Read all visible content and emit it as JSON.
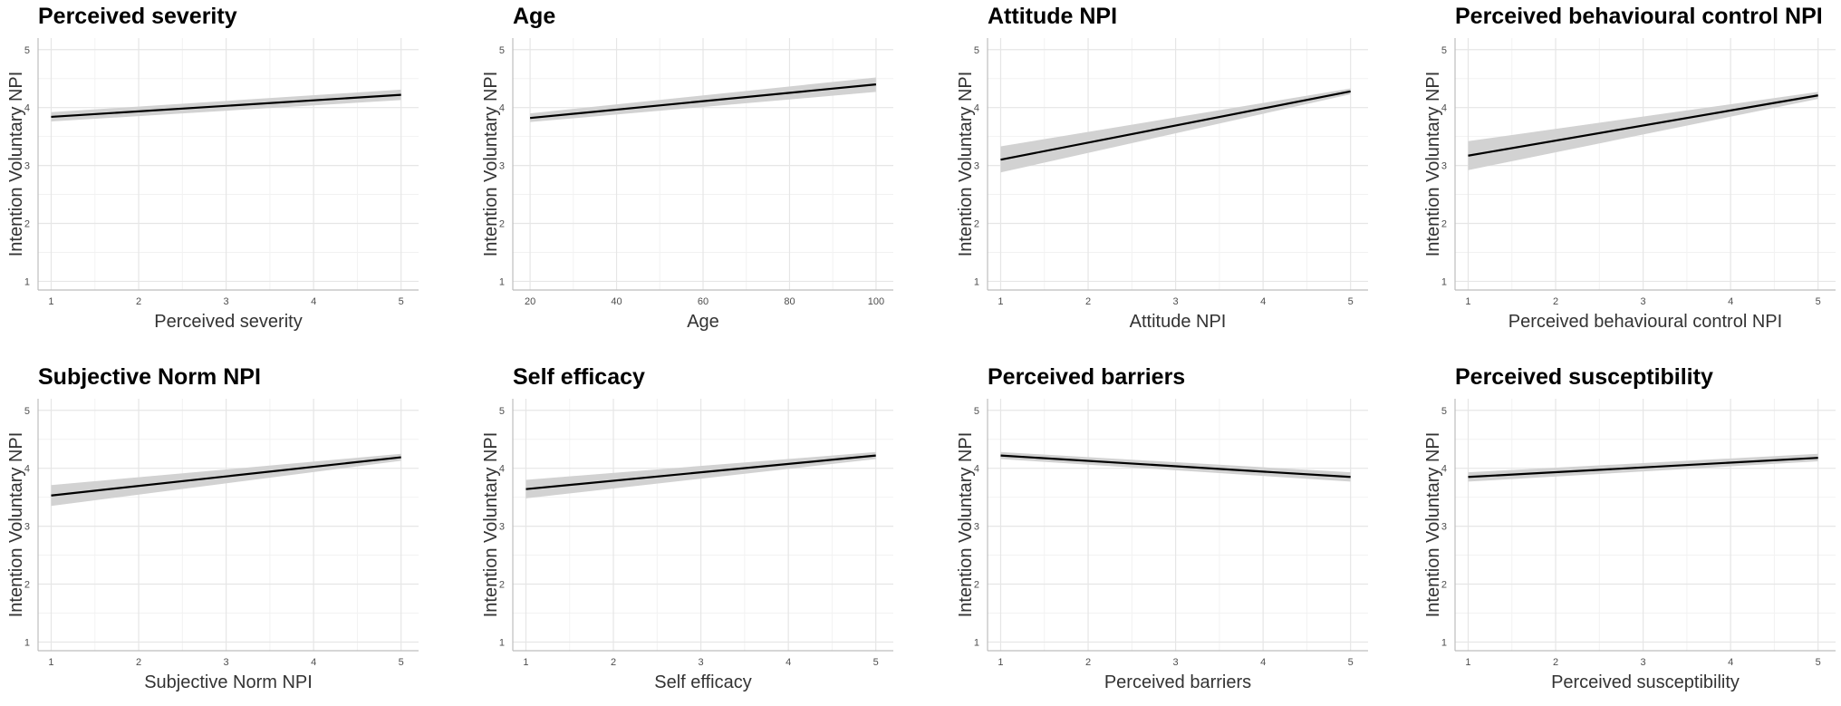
{
  "colors": {
    "background": "#ffffff",
    "grid_major": "#e6e6e6",
    "grid_minor": "#f2f2f2",
    "axis_line": "#bdbdbd",
    "tick_text": "#4d4d4d",
    "axis_title": "#333333",
    "title": "#000000",
    "line": "#000000",
    "ribbon": "#d2d2d2"
  },
  "chart_data": [
    {
      "type": "line",
      "title": "Perceived severity",
      "xlabel": "Perceived severity",
      "ylabel": "Intention Voluntary NPI",
      "xlim": [
        0.85,
        5.2
      ],
      "ylim": [
        0.85,
        5.2
      ],
      "xticks": [
        1,
        2,
        3,
        4,
        5
      ],
      "yticks": [
        1,
        2,
        3,
        4,
        5
      ],
      "xminor": [
        1.5,
        2.5,
        3.5,
        4.5
      ],
      "yminor": [
        1.5,
        2.5,
        3.5,
        4.5
      ],
      "x": [
        1,
        5
      ],
      "y": [
        3.84,
        4.22
      ],
      "lower": [
        3.76,
        4.13
      ],
      "upper": [
        3.92,
        4.31
      ],
      "grid": true
    },
    {
      "type": "line",
      "title": "Age",
      "xlabel": "Age",
      "ylabel": "Intention Voluntary NPI",
      "xlim": [
        16,
        104
      ],
      "ylim": [
        0.85,
        5.2
      ],
      "xticks": [
        20,
        40,
        60,
        80,
        100
      ],
      "yticks": [
        1,
        2,
        3,
        4,
        5
      ],
      "xminor": [
        30,
        50,
        70,
        90
      ],
      "yminor": [
        1.5,
        2.5,
        3.5,
        4.5
      ],
      "x": [
        20,
        100
      ],
      "y": [
        3.82,
        4.4
      ],
      "lower": [
        3.75,
        4.27
      ],
      "upper": [
        3.9,
        4.52
      ],
      "grid": true
    },
    {
      "type": "line",
      "title": "Attitude NPI",
      "xlabel": "Attitude NPI",
      "ylabel": "Intention Voluntary NPI",
      "xlim": [
        0.85,
        5.2
      ],
      "ylim": [
        0.85,
        5.2
      ],
      "xticks": [
        1,
        2,
        3,
        4,
        5
      ],
      "yticks": [
        1,
        2,
        3,
        4,
        5
      ],
      "xminor": [
        1.5,
        2.5,
        3.5,
        4.5
      ],
      "yminor": [
        1.5,
        2.5,
        3.5,
        4.5
      ],
      "x": [
        1,
        5
      ],
      "y": [
        3.1,
        4.28
      ],
      "lower": [
        2.88,
        4.23
      ],
      "upper": [
        3.33,
        4.33
      ],
      "grid": true
    },
    {
      "type": "line",
      "title": "Perceived behavioural control NPI",
      "xlabel": "Perceived behavioural control NPI",
      "ylabel": "Intention Voluntary NPI",
      "xlim": [
        0.85,
        5.2
      ],
      "ylim": [
        0.85,
        5.2
      ],
      "xticks": [
        1,
        2,
        3,
        4,
        5
      ],
      "yticks": [
        1,
        2,
        3,
        4,
        5
      ],
      "xminor": [
        1.5,
        2.5,
        3.5,
        4.5
      ],
      "yminor": [
        1.5,
        2.5,
        3.5,
        4.5
      ],
      "x": [
        1,
        5
      ],
      "y": [
        3.17,
        4.21
      ],
      "lower": [
        2.92,
        4.15
      ],
      "upper": [
        3.42,
        4.27
      ],
      "grid": true
    },
    {
      "type": "line",
      "title": "Subjective Norm NPI",
      "xlabel": "Subjective Norm NPI",
      "ylabel": "Intention Voluntary NPI",
      "xlim": [
        0.85,
        5.2
      ],
      "ylim": [
        0.85,
        5.2
      ],
      "xticks": [
        1,
        2,
        3,
        4,
        5
      ],
      "yticks": [
        1,
        2,
        3,
        4,
        5
      ],
      "xminor": [
        1.5,
        2.5,
        3.5,
        4.5
      ],
      "yminor": [
        1.5,
        2.5,
        3.5,
        4.5
      ],
      "x": [
        1,
        5
      ],
      "y": [
        3.53,
        4.19
      ],
      "lower": [
        3.35,
        4.13
      ],
      "upper": [
        3.71,
        4.25
      ],
      "grid": true
    },
    {
      "type": "line",
      "title": "Self efficacy",
      "xlabel": "Self efficacy",
      "ylabel": "Intention Voluntary NPI",
      "xlim": [
        0.85,
        5.2
      ],
      "ylim": [
        0.85,
        5.2
      ],
      "xticks": [
        1,
        2,
        3,
        4,
        5
      ],
      "yticks": [
        1,
        2,
        3,
        4,
        5
      ],
      "xminor": [
        1.5,
        2.5,
        3.5,
        4.5
      ],
      "yminor": [
        1.5,
        2.5,
        3.5,
        4.5
      ],
      "x": [
        1,
        5
      ],
      "y": [
        3.64,
        4.22
      ],
      "lower": [
        3.48,
        4.16
      ],
      "upper": [
        3.8,
        4.28
      ],
      "grid": true
    },
    {
      "type": "line",
      "title": "Perceived barriers",
      "xlabel": "Perceived barriers",
      "ylabel": "Intention Voluntary NPI",
      "xlim": [
        0.85,
        5.2
      ],
      "ylim": [
        0.85,
        5.2
      ],
      "xticks": [
        1,
        2,
        3,
        4,
        5
      ],
      "yticks": [
        1,
        2,
        3,
        4,
        5
      ],
      "xminor": [
        1.5,
        2.5,
        3.5,
        4.5
      ],
      "yminor": [
        1.5,
        2.5,
        3.5,
        4.5
      ],
      "x": [
        1,
        5
      ],
      "y": [
        4.22,
        3.85
      ],
      "lower": [
        4.16,
        3.77
      ],
      "upper": [
        4.28,
        3.93
      ],
      "grid": true
    },
    {
      "type": "line",
      "title": "Perceived susceptibility",
      "xlabel": "Perceived susceptibility",
      "ylabel": "Intention Voluntary NPI",
      "xlim": [
        0.85,
        5.2
      ],
      "ylim": [
        0.85,
        5.2
      ],
      "xticks": [
        1,
        2,
        3,
        4,
        5
      ],
      "yticks": [
        1,
        2,
        3,
        4,
        5
      ],
      "xminor": [
        1.5,
        2.5,
        3.5,
        4.5
      ],
      "yminor": [
        1.5,
        2.5,
        3.5,
        4.5
      ],
      "x": [
        1,
        5
      ],
      "y": [
        3.85,
        4.18
      ],
      "lower": [
        3.77,
        4.12
      ],
      "upper": [
        3.93,
        4.25
      ],
      "grid": true
    }
  ]
}
